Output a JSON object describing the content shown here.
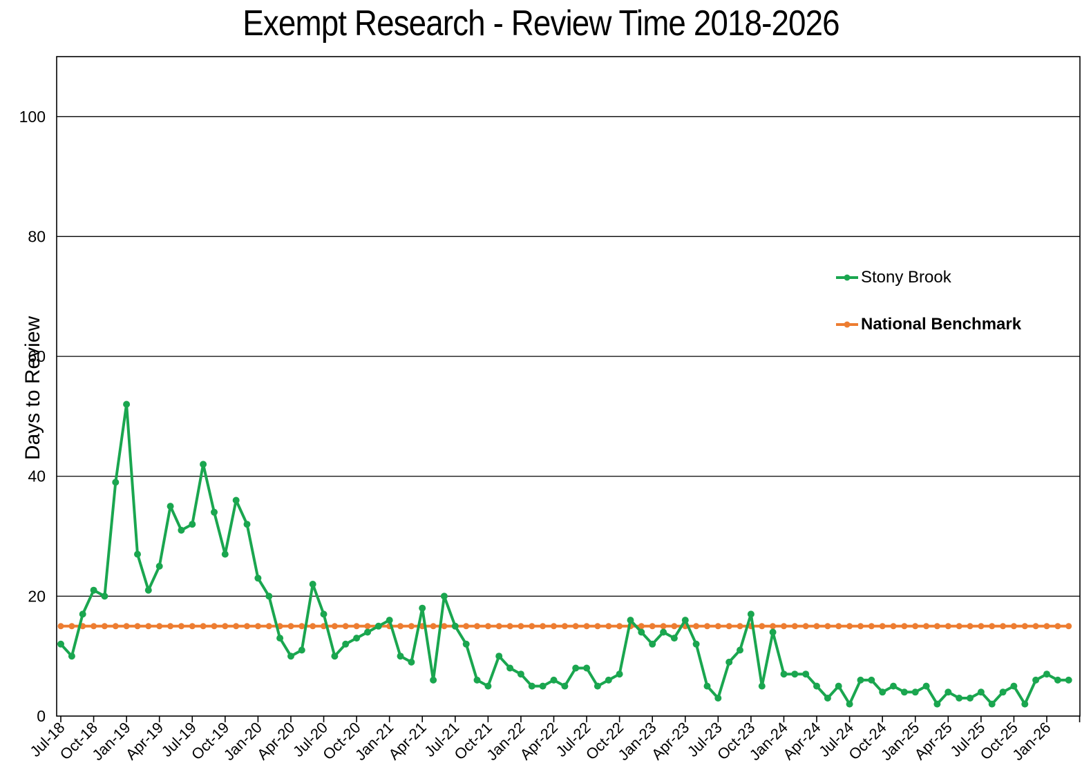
{
  "title": "Exempt Research - Review Time 2018-2026",
  "y_axis": {
    "label": "Days to Review",
    "ticks": [
      0,
      20,
      40,
      60,
      80,
      100
    ]
  },
  "legend": [
    {
      "label": "Stony Brook",
      "color": "#1AA64F",
      "bold": false
    },
    {
      "label": "National Benchmark",
      "color": "#ED7D31",
      "bold": true
    }
  ],
  "colors": {
    "stony_brook": "#1AA64F",
    "benchmark": "#ED7D31",
    "axis": "#000000",
    "background": "#FFFFFF"
  },
  "chart_data": {
    "type": "line",
    "title": "Exempt Research - Review Time 2018-2026",
    "xlabel": "",
    "ylabel": "Days to Review",
    "ylim": [
      0,
      110
    ],
    "grid": "horizontal",
    "legend_position": "right-inside",
    "x": [
      "Jul-18",
      "Aug-18",
      "Sep-18",
      "Oct-18",
      "Nov-18",
      "Dec-18",
      "Jan-19",
      "Feb-19",
      "Mar-19",
      "Apr-19",
      "May-19",
      "Jun-19",
      "Jul-19",
      "Aug-19",
      "Sep-19",
      "Oct-19",
      "Nov-19",
      "Dec-19",
      "Jan-20",
      "Feb-20",
      "Mar-20",
      "Apr-20",
      "May-20",
      "Jun-20",
      "Jul-20",
      "Aug-20",
      "Sep-20",
      "Oct-20",
      "Nov-20",
      "Dec-20",
      "Jan-21",
      "Feb-21",
      "Mar-21",
      "Apr-21",
      "May-21",
      "Jun-21",
      "Jul-21",
      "Aug-21",
      "Sep-21",
      "Oct-21",
      "Nov-21",
      "Dec-21",
      "Jan-22",
      "Feb-22",
      "Mar-22",
      "Apr-22",
      "May-22",
      "Jun-22",
      "Jul-22",
      "Aug-22",
      "Sep-22",
      "Oct-22",
      "Nov-22",
      "Dec-22",
      "Jan-23",
      "Feb-23",
      "Mar-23",
      "Apr-23",
      "May-23",
      "Jun-23",
      "Jul-23",
      "Aug-23",
      "Sep-23",
      "Oct-23",
      "Nov-23",
      "Dec-23",
      "Jan-24",
      "Feb-24",
      "Mar-24",
      "Apr-24",
      "May-24",
      "Jun-24",
      "Jul-24",
      "Aug-24",
      "Sep-24",
      "Oct-24",
      "Nov-24",
      "Dec-24",
      "Jan-25",
      "Feb-25",
      "Mar-25",
      "Apr-25",
      "May-25",
      "Jun-25",
      "Jul-25",
      "Aug-25",
      "Sep-25",
      "Oct-25",
      "Nov-25",
      "Dec-25",
      "Jan-26",
      "Feb-26",
      "Mar-26"
    ],
    "x_tick_labels": [
      "Jul-18",
      "Oct-18",
      "Jan-19",
      "Apr-19",
      "Jul-19",
      "Oct-19",
      "Jan-20",
      "Apr-20",
      "Jul-20",
      "Oct-20",
      "Jan-21",
      "Apr-21",
      "Jul-21",
      "Oct-21",
      "Jan-22",
      "Apr-22",
      "Jul-22",
      "Oct-22",
      "Jan-23",
      "Apr-23",
      "Jul-23",
      "Oct-23",
      "Jan-24",
      "Apr-24",
      "Jul-24",
      "Oct-24",
      "Jan-25",
      "Apr-25",
      "Jul-25",
      "Oct-25",
      "Jan-26"
    ],
    "series": [
      {
        "name": "Stony Brook",
        "color": "#1AA64F",
        "values": [
          12,
          10,
          17,
          21,
          20,
          39,
          52,
          27,
          21,
          25,
          35,
          31,
          32,
          42,
          34,
          27,
          36,
          32,
          23,
          20,
          13,
          10,
          11,
          22,
          17,
          10,
          12,
          13,
          14,
          15,
          16,
          10,
          9,
          18,
          6,
          20,
          15,
          12,
          6,
          5,
          10,
          8,
          7,
          5,
          5,
          6,
          5,
          8,
          8,
          5,
          6,
          7,
          16,
          14,
          12,
          14,
          13,
          16,
          12,
          5,
          3,
          9,
          11,
          17,
          5,
          14,
          7,
          7,
          7,
          5,
          3,
          5,
          2,
          6,
          6,
          4,
          5,
          4,
          4,
          5,
          2,
          4,
          3,
          3,
          4,
          2,
          4,
          5,
          2,
          6,
          7,
          6,
          6
        ]
      },
      {
        "name": "National Benchmark",
        "color": "#ED7D31",
        "values": [
          15,
          15,
          15,
          15,
          15,
          15,
          15,
          15,
          15,
          15,
          15,
          15,
          15,
          15,
          15,
          15,
          15,
          15,
          15,
          15,
          15,
          15,
          15,
          15,
          15,
          15,
          15,
          15,
          15,
          15,
          15,
          15,
          15,
          15,
          15,
          15,
          15,
          15,
          15,
          15,
          15,
          15,
          15,
          15,
          15,
          15,
          15,
          15,
          15,
          15,
          15,
          15,
          15,
          15,
          15,
          15,
          15,
          15,
          15,
          15,
          15,
          15,
          15,
          15,
          15,
          15,
          15,
          15,
          15,
          15,
          15,
          15,
          15,
          15,
          15,
          15,
          15,
          15,
          15,
          15,
          15,
          15,
          15,
          15,
          15,
          15,
          15,
          15,
          15,
          15,
          15,
          15,
          15
        ]
      }
    ]
  }
}
